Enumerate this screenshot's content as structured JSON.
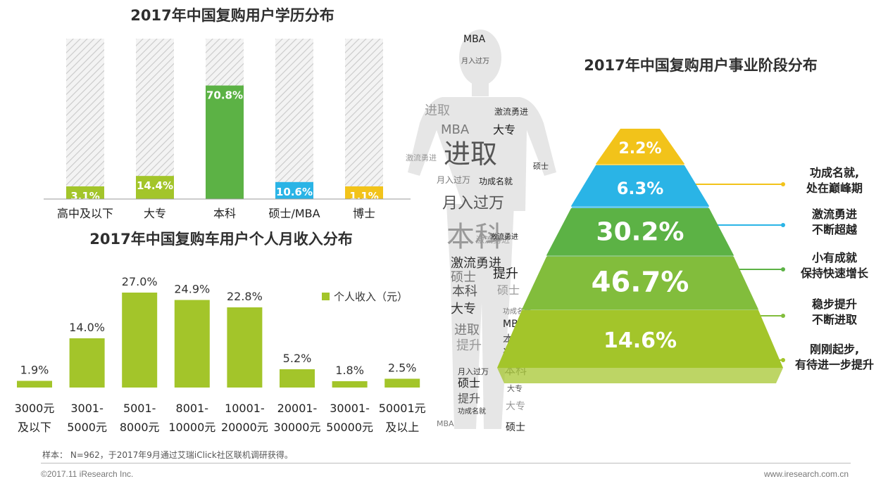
{
  "chart_data": [
    {
      "type": "bar",
      "title": "2017年中国复购用户学历分布",
      "categories": [
        "高中及以下",
        "大专",
        "本科",
        "硕士/MBA",
        "博士"
      ],
      "values": [
        3.1,
        14.4,
        70.8,
        10.6,
        1.1
      ],
      "labels": [
        "3.1%",
        "14.4%",
        "70.8%",
        "10.6%",
        "1.1%"
      ],
      "colors": [
        "#a3c52a",
        "#a3c52a",
        "#5cb245",
        "#2ab4e6",
        "#f2c31a"
      ],
      "ylim": [
        0,
        100
      ],
      "style": "filled bars over hatched full-height background bars"
    },
    {
      "type": "bar",
      "title": "2017年中国复购车用户个人月收入分布",
      "categories": [
        "3000元\n及以下",
        "3001-\n5000元",
        "5001-\n8000元",
        "8001-\n10000元",
        "10001-\n20000元",
        "20001-\n30000元",
        "30001-\n50000元",
        "50001元\n及以上"
      ],
      "series": [
        {
          "name": "个人收入（元）",
          "values": [
            1.9,
            14.0,
            27.0,
            24.9,
            22.8,
            5.2,
            1.8,
            2.5
          ],
          "labels": [
            "1.9%",
            "14.0%",
            "27.0%",
            "24.9%",
            "22.8%",
            "5.2%",
            "1.8%",
            "2.5%"
          ]
        }
      ],
      "legend": {
        "label": "个人收入（元）",
        "position": "right"
      },
      "ylim": [
        0,
        30
      ],
      "color": "#a3c52a"
    },
    {
      "type": "pyramid",
      "title": "2017年中国复购用户事业阶段分布",
      "levels": [
        {
          "value": 2.2,
          "label": "2.2%",
          "stage": [
            "功成名就,",
            "处在巅峰期"
          ],
          "color": "#f2c31a",
          "line": "#f2c31a"
        },
        {
          "value": 6.3,
          "label": "6.3%",
          "stage": [
            "激流勇进",
            "不断超越"
          ],
          "color": "#2ab4e6",
          "line": "#2ab4e6"
        },
        {
          "value": 30.2,
          "label": "30.2%",
          "stage": [
            "小有成就",
            "保持快速增长"
          ],
          "color": "#5cb245",
          "line": "#5cb245"
        },
        {
          "value": 46.7,
          "label": "46.7%",
          "stage": [
            "稳步提升",
            "不断进取"
          ],
          "color": "#82bd3c",
          "line": "#82bd3c"
        },
        {
          "value": 14.6,
          "label": "14.6%",
          "stage": [
            "刚刚起步,",
            "有待进一步提升"
          ],
          "color": "#a3c52a",
          "line": "#a3c52a"
        }
      ]
    }
  ],
  "word_cloud": {
    "shape": "standing-person",
    "words": [
      "MBA",
      "进取",
      "月入过万",
      "本科",
      "激流勇进",
      "硕士",
      "提升",
      "大专",
      "功成名就"
    ]
  },
  "footer": {
    "note": "样本： N=962，于2017年9月通过艾瑞iClick社区联机调研获得。",
    "copyright": "©2017.11 iResearch Inc.",
    "site": "www.iresearch.com.cn"
  }
}
